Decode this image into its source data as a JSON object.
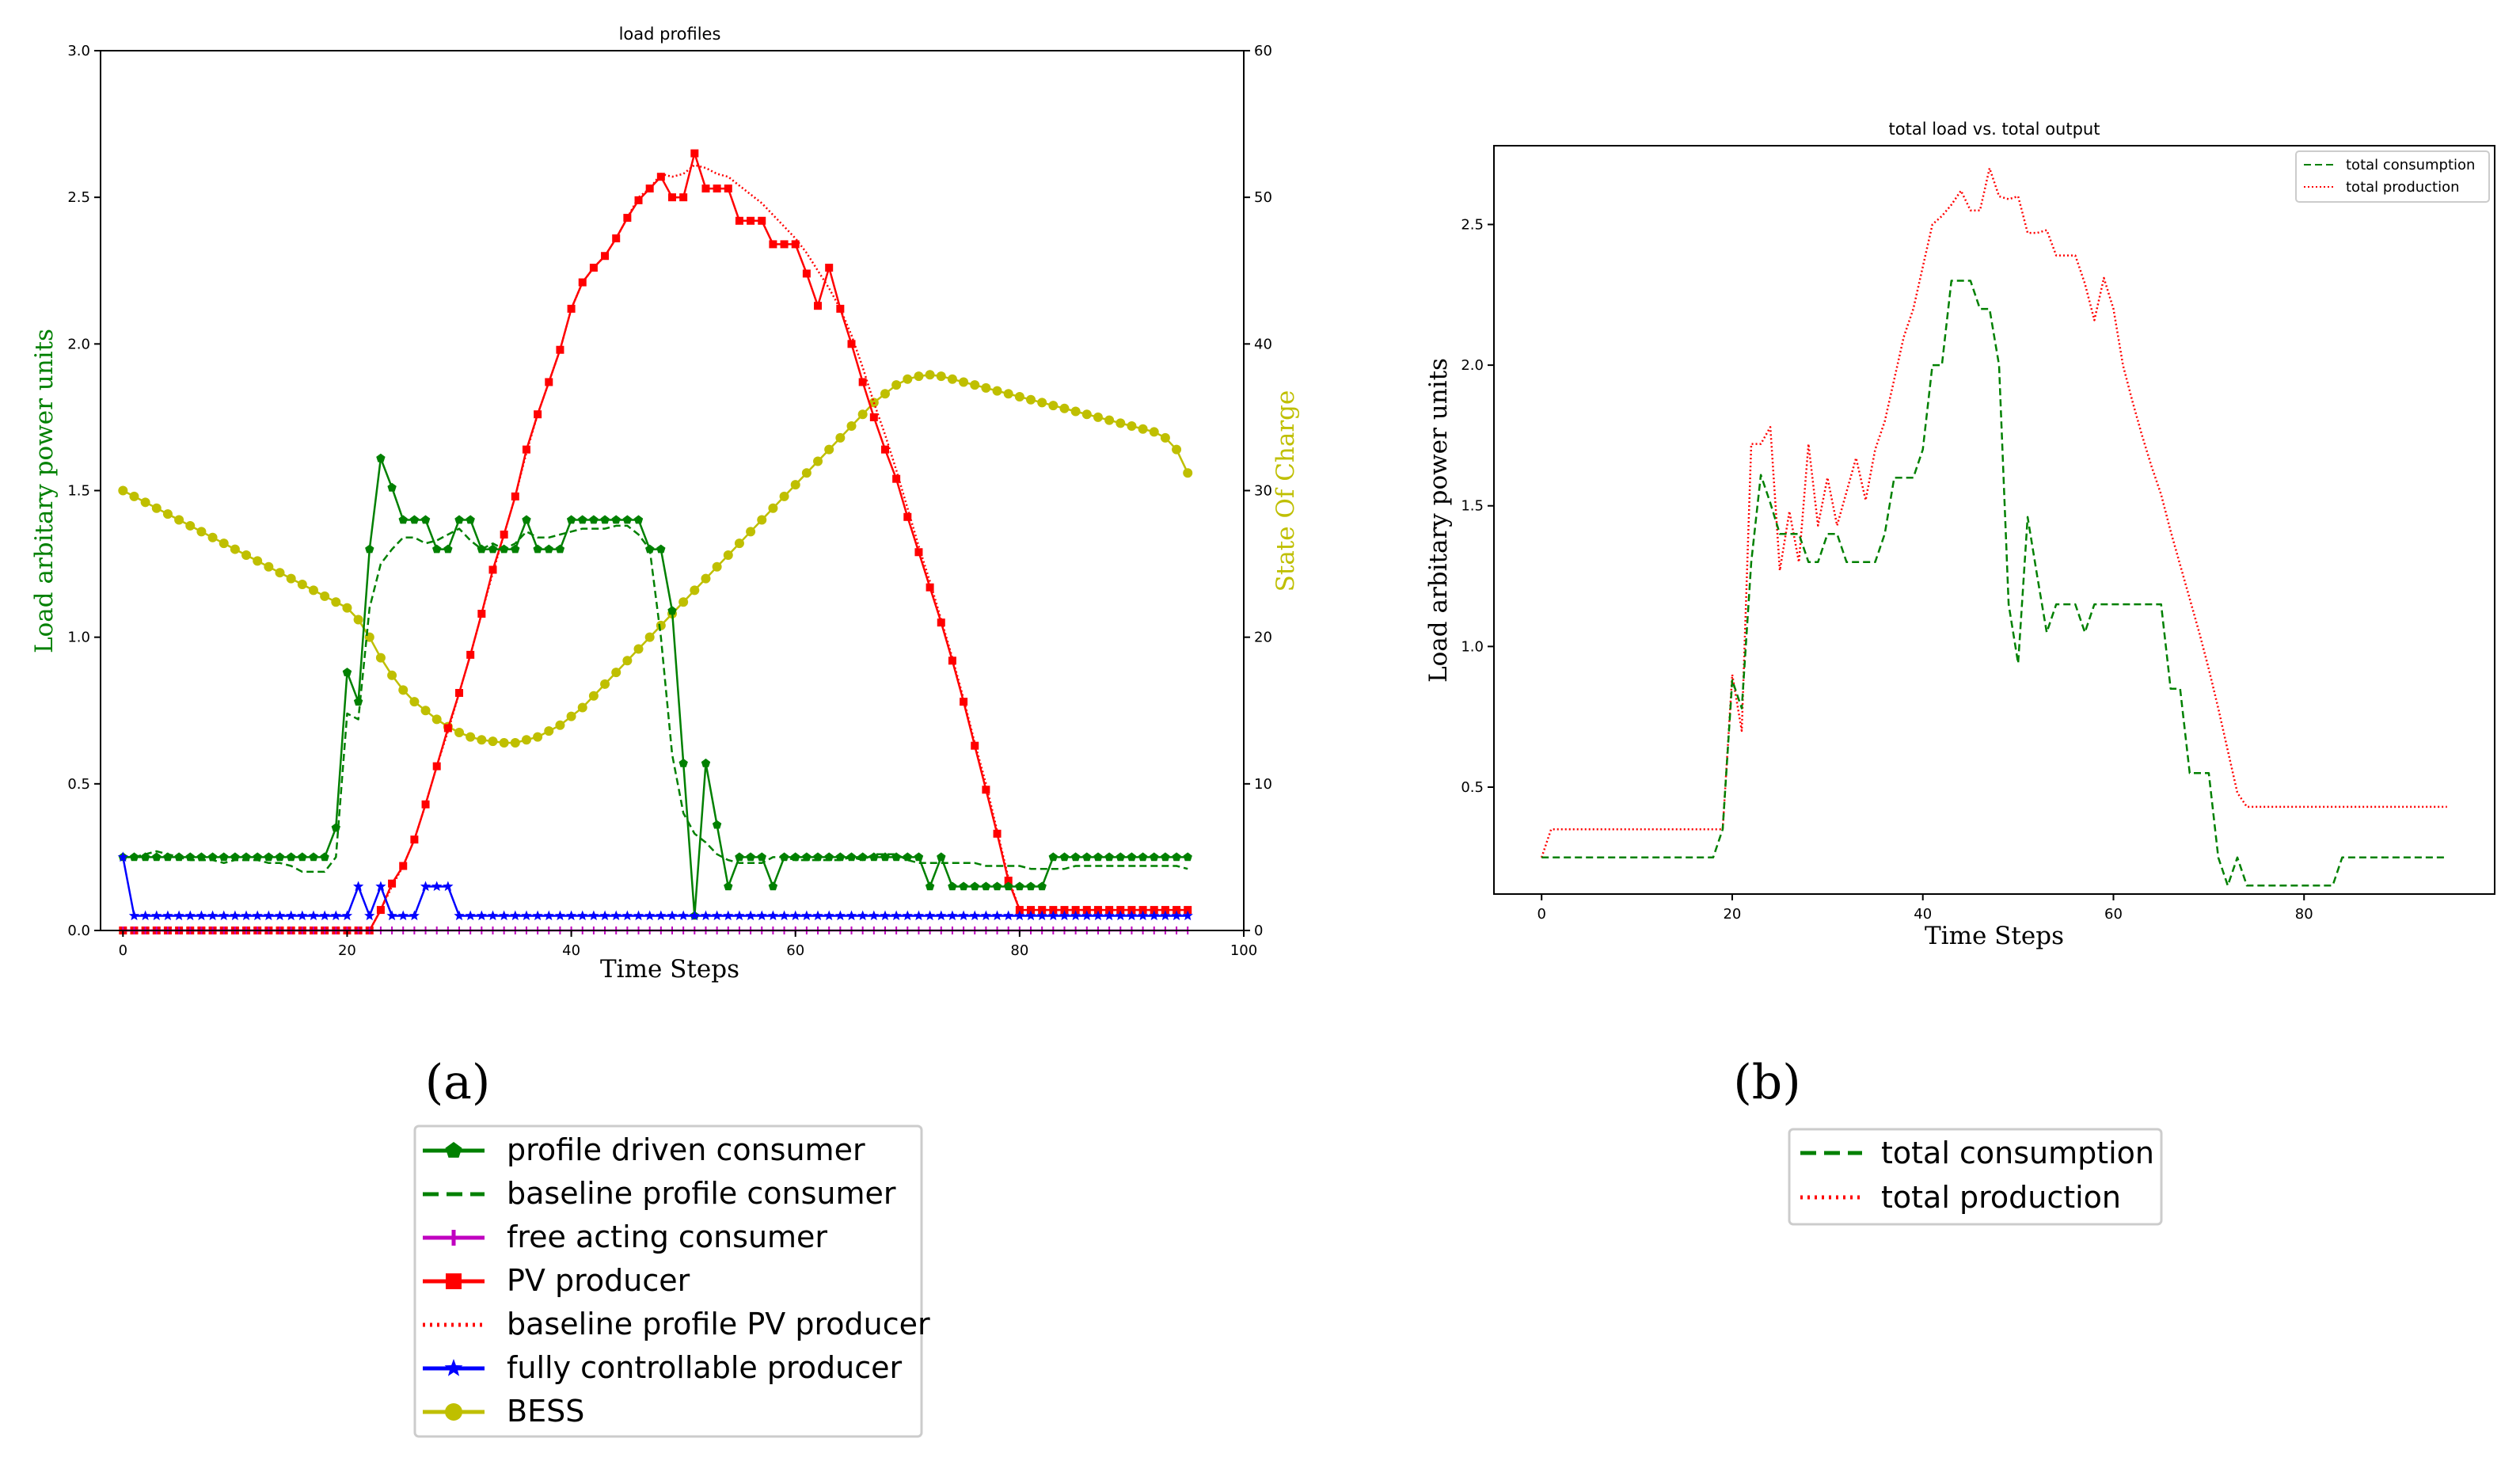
{
  "chart_data": [
    {
      "type": "line",
      "title": "load profiles",
      "xlabel": "Time Steps",
      "ylabel": "Load arbitary power units",
      "y2label": "State Of Charge",
      "xlim": [
        -2,
        100
      ],
      "ylim": [
        0,
        3.0
      ],
      "y2lim": [
        0,
        60
      ],
      "xticks": [
        "0",
        "20",
        "40",
        "60",
        "80",
        "100"
      ],
      "yticks": [
        "0.0",
        "0.5",
        "1.0",
        "1.5",
        "2.0",
        "2.5",
        "3.0"
      ],
      "y2ticks": [
        "0",
        "10",
        "20",
        "30",
        "40",
        "50",
        "60"
      ],
      "subfigure_label": "(a)",
      "legend_placement": "below",
      "series_colors": {
        "profile": "#008000",
        "baseline": "#008000",
        "free": "#c000c0",
        "pv": "#ff0000",
        "pvbase": "#ff0000",
        "fully": "#0000ff",
        "bess": "#bfbf00"
      },
      "series": [
        {
          "key": "profile",
          "name": "profile driven consumer",
          "marker": "pentagon",
          "style": "solid",
          "values": [
            0.25,
            0.25,
            0.25,
            0.25,
            0.25,
            0.25,
            0.25,
            0.25,
            0.25,
            0.25,
            0.25,
            0.25,
            0.25,
            0.25,
            0.25,
            0.25,
            0.25,
            0.25,
            0.25,
            0.35,
            0.88,
            0.78,
            1.3,
            1.61,
            1.51,
            1.4,
            1.4,
            1.4,
            1.3,
            1.3,
            1.4,
            1.4,
            1.3,
            1.3,
            1.3,
            1.3,
            1.4,
            1.3,
            1.3,
            1.3,
            1.4,
            1.4,
            1.4,
            1.4,
            1.4,
            1.4,
            1.4,
            1.3,
            1.3,
            1.09,
            0.57,
            0.05,
            0.57,
            0.36,
            0.15,
            0.25,
            0.25,
            0.25,
            0.15,
            0.25,
            0.25,
            0.25,
            0.25,
            0.25,
            0.25,
            0.25,
            0.25,
            0.25,
            0.25,
            0.25,
            0.25,
            0.25,
            0.15,
            0.25,
            0.15,
            0.15,
            0.15,
            0.15,
            0.15,
            0.15,
            0.15,
            0.15,
            0.15,
            0.25,
            0.25,
            0.25,
            0.25,
            0.25,
            0.25,
            0.25,
            0.25,
            0.25,
            0.25,
            0.25,
            0.25,
            0.25
          ]
        },
        {
          "key": "baseline",
          "name": "baseline profile consumer",
          "marker": "none",
          "style": "dashed",
          "values": [
            0.25,
            0.25,
            0.26,
            0.27,
            0.26,
            0.25,
            0.24,
            0.24,
            0.24,
            0.23,
            0.24,
            0.24,
            0.24,
            0.23,
            0.23,
            0.22,
            0.2,
            0.2,
            0.2,
            0.25,
            0.74,
            0.72,
            1.1,
            1.25,
            1.3,
            1.34,
            1.34,
            1.32,
            1.33,
            1.35,
            1.37,
            1.33,
            1.3,
            1.32,
            1.3,
            1.32,
            1.36,
            1.34,
            1.34,
            1.35,
            1.36,
            1.37,
            1.37,
            1.37,
            1.38,
            1.38,
            1.35,
            1.3,
            1.0,
            0.6,
            0.4,
            0.33,
            0.3,
            0.26,
            0.24,
            0.23,
            0.23,
            0.23,
            0.25,
            0.25,
            0.24,
            0.24,
            0.24,
            0.24,
            0.24,
            0.25,
            0.24,
            0.26,
            0.26,
            0.26,
            0.24,
            0.23,
            0.23,
            0.23,
            0.23,
            0.23,
            0.23,
            0.22,
            0.22,
            0.22,
            0.22,
            0.21,
            0.21,
            0.21,
            0.21,
            0.22,
            0.22,
            0.22,
            0.22,
            0.22,
            0.22,
            0.22,
            0.22,
            0.22,
            0.22,
            0.21
          ]
        },
        {
          "key": "free",
          "name": "free acting consumer",
          "marker": "plus",
          "style": "solid",
          "values": [
            0,
            0,
            0,
            0,
            0,
            0,
            0,
            0,
            0,
            0,
            0,
            0,
            0,
            0,
            0,
            0,
            0,
            0,
            0,
            0,
            0,
            0,
            0,
            0,
            0,
            0,
            0,
            0,
            0,
            0,
            0,
            0,
            0,
            0,
            0,
            0,
            0,
            0,
            0,
            0,
            0,
            0,
            0,
            0,
            0,
            0,
            0,
            0,
            0,
            0,
            0,
            0,
            0,
            0,
            0,
            0,
            0,
            0,
            0,
            0,
            0,
            0,
            0,
            0,
            0,
            0,
            0,
            0,
            0,
            0,
            0,
            0,
            0,
            0,
            0,
            0,
            0,
            0,
            0,
            0,
            0,
            0,
            0,
            0,
            0,
            0,
            0,
            0,
            0,
            0,
            0,
            0,
            0,
            0,
            0,
            0
          ]
        },
        {
          "key": "pv",
          "name": "PV producer",
          "marker": "square",
          "style": "solid",
          "values": [
            0,
            0,
            0,
            0,
            0,
            0,
            0,
            0,
            0,
            0,
            0,
            0,
            0,
            0,
            0,
            0,
            0,
            0,
            0,
            0,
            0,
            0,
            0,
            0.07,
            0.16,
            0.22,
            0.31,
            0.43,
            0.56,
            0.69,
            0.81,
            0.94,
            1.08,
            1.23,
            1.35,
            1.48,
            1.64,
            1.76,
            1.87,
            1.98,
            2.12,
            2.21,
            2.26,
            2.3,
            2.36,
            2.43,
            2.49,
            2.53,
            2.57,
            2.5,
            2.5,
            2.65,
            2.53,
            2.53,
            2.53,
            2.42,
            2.42,
            2.42,
            2.34,
            2.34,
            2.34,
            2.24,
            2.13,
            2.26,
            2.12,
            2.0,
            1.87,
            1.75,
            1.64,
            1.54,
            1.41,
            1.29,
            1.17,
            1.05,
            0.92,
            0.78,
            0.63,
            0.48,
            0.33,
            0.17,
            0.07,
            0.07,
            0.07,
            0.07,
            0.07,
            0.07,
            0.07,
            0.07,
            0.07,
            0.07,
            0.07,
            0.07,
            0.07,
            0.07,
            0.07,
            0.07
          ]
        },
        {
          "key": "pvbase",
          "name": "baseline profile PV producer",
          "marker": "none",
          "style": "dotted",
          "values": [
            0,
            0,
            0,
            0,
            0,
            0,
            0,
            0,
            0,
            0,
            0,
            0,
            0,
            0,
            0,
            0,
            0,
            0,
            0,
            0,
            0,
            0,
            0,
            0.07,
            0.15,
            0.22,
            0.31,
            0.43,
            0.56,
            0.68,
            0.81,
            0.94,
            1.08,
            1.22,
            1.35,
            1.48,
            1.63,
            1.76,
            1.87,
            1.98,
            2.12,
            2.21,
            2.26,
            2.3,
            2.36,
            2.43,
            2.5,
            2.53,
            2.58,
            2.57,
            2.58,
            2.61,
            2.6,
            2.58,
            2.57,
            2.54,
            2.51,
            2.48,
            2.44,
            2.4,
            2.36,
            2.31,
            2.25,
            2.19,
            2.12,
            2.03,
            1.92,
            1.8,
            1.69,
            1.57,
            1.44,
            1.31,
            1.19,
            1.06,
            0.93,
            0.79,
            0.64,
            0.5,
            0.34,
            0.18,
            0.07,
            0.07,
            0.07,
            0.07,
            0.07,
            0.07,
            0.07,
            0.07,
            0.07,
            0.07,
            0.07,
            0.07,
            0.07,
            0.07,
            0.07,
            0.07
          ]
        },
        {
          "key": "fully",
          "name": "fully controllable producer",
          "marker": "star",
          "style": "solid",
          "values": [
            0.25,
            0.05,
            0.05,
            0.05,
            0.05,
            0.05,
            0.05,
            0.05,
            0.05,
            0.05,
            0.05,
            0.05,
            0.05,
            0.05,
            0.05,
            0.05,
            0.05,
            0.05,
            0.05,
            0.05,
            0.05,
            0.15,
            0.05,
            0.15,
            0.05,
            0.05,
            0.05,
            0.15,
            0.15,
            0.15,
            0.05,
            0.05,
            0.05,
            0.05,
            0.05,
            0.05,
            0.05,
            0.05,
            0.05,
            0.05,
            0.05,
            0.05,
            0.05,
            0.05,
            0.05,
            0.05,
            0.05,
            0.05,
            0.05,
            0.05,
            0.05,
            0.05,
            0.05,
            0.05,
            0.05,
            0.05,
            0.05,
            0.05,
            0.05,
            0.05,
            0.05,
            0.05,
            0.05,
            0.05,
            0.05,
            0.05,
            0.05,
            0.05,
            0.05,
            0.05,
            0.05,
            0.05,
            0.05,
            0.05,
            0.05,
            0.05,
            0.05,
            0.05,
            0.05,
            0.05,
            0.05,
            0.05,
            0.05,
            0.05,
            0.05,
            0.05,
            0.05,
            0.05,
            0.05,
            0.05,
            0.05,
            0.05,
            0.05,
            0.05,
            0.05,
            0.05
          ]
        },
        {
          "key": "bess",
          "name": "BESS",
          "marker": "circle",
          "style": "solid",
          "axis": "right",
          "values": [
            30.0,
            29.6,
            29.2,
            28.8,
            28.4,
            28.0,
            27.6,
            27.2,
            26.8,
            26.4,
            26.0,
            25.6,
            25.2,
            24.8,
            24.4,
            24.0,
            23.6,
            23.2,
            22.8,
            22.4,
            22.0,
            21.2,
            20.0,
            18.6,
            17.4,
            16.4,
            15.6,
            15.0,
            14.4,
            13.9,
            13.5,
            13.2,
            13.0,
            12.9,
            12.8,
            12.8,
            13.0,
            13.2,
            13.6,
            14.0,
            14.6,
            15.2,
            16.0,
            16.8,
            17.6,
            18.4,
            19.2,
            20.0,
            20.8,
            21.6,
            22.4,
            23.2,
            24.0,
            24.8,
            25.6,
            26.4,
            27.2,
            28.0,
            28.8,
            29.6,
            30.4,
            31.2,
            32.0,
            32.8,
            33.6,
            34.4,
            35.2,
            36.0,
            36.6,
            37.2,
            37.6,
            37.8,
            37.9,
            37.8,
            37.6,
            37.4,
            37.2,
            37.0,
            36.8,
            36.6,
            36.4,
            36.2,
            36.0,
            35.8,
            35.6,
            35.4,
            35.2,
            35.0,
            34.8,
            34.6,
            34.4,
            34.2,
            34.0,
            33.6,
            32.8,
            31.2
          ]
        }
      ]
    },
    {
      "type": "line",
      "title": "total load vs. total output",
      "xlabel": "Time Steps",
      "ylabel": "Load arbitary power units",
      "xlim": [
        -5,
        100
      ],
      "ylim": [
        0.12,
        2.78
      ],
      "xticks": [
        "0",
        "20",
        "40",
        "60",
        "80"
      ],
      "yticks": [
        "0.5",
        "1.0",
        "1.5",
        "2.0",
        "2.5"
      ],
      "subfigure_label": "(b)",
      "legend_placement": "top-right",
      "series_colors": {
        "cons": "#008000",
        "prod": "#ff0000"
      },
      "series": [
        {
          "key": "cons",
          "name": "total consumption",
          "style": "dashed",
          "values": [
            0.25,
            0.25,
            0.25,
            0.25,
            0.25,
            0.25,
            0.25,
            0.25,
            0.25,
            0.25,
            0.25,
            0.25,
            0.25,
            0.25,
            0.25,
            0.25,
            0.25,
            0.25,
            0.25,
            0.35,
            0.88,
            0.78,
            1.3,
            1.61,
            1.51,
            1.4,
            1.4,
            1.4,
            1.3,
            1.3,
            1.4,
            1.4,
            1.3,
            1.3,
            1.3,
            1.3,
            1.4,
            1.6,
            1.6,
            1.6,
            1.7,
            2.0,
            2.0,
            2.3,
            2.3,
            2.3,
            2.2,
            2.2,
            2.0,
            1.15,
            0.94,
            1.46,
            1.25,
            1.05,
            1.15,
            1.15,
            1.15,
            1.05,
            1.15,
            1.15,
            1.15,
            1.15,
            1.15,
            1.15,
            1.15,
            1.15,
            0.85,
            0.85,
            0.55,
            0.55,
            0.55,
            0.25,
            0.15,
            0.25,
            0.15,
            0.15,
            0.15,
            0.15,
            0.15,
            0.15,
            0.15,
            0.15,
            0.15,
            0.15,
            0.25,
            0.25,
            0.25,
            0.25,
            0.25,
            0.25,
            0.25,
            0.25,
            0.25,
            0.25,
            0.25,
            0.25
          ]
        },
        {
          "key": "prod",
          "name": "total production",
          "style": "dotted",
          "values": [
            0.25,
            0.35,
            0.35,
            0.35,
            0.35,
            0.35,
            0.35,
            0.35,
            0.35,
            0.35,
            0.35,
            0.35,
            0.35,
            0.35,
            0.35,
            0.35,
            0.35,
            0.35,
            0.35,
            0.35,
            0.9,
            0.7,
            1.72,
            1.72,
            1.78,
            1.27,
            1.48,
            1.3,
            1.72,
            1.43,
            1.6,
            1.43,
            1.55,
            1.67,
            1.52,
            1.7,
            1.8,
            1.95,
            2.1,
            2.2,
            2.35,
            2.5,
            2.53,
            2.57,
            2.62,
            2.55,
            2.55,
            2.7,
            2.6,
            2.59,
            2.6,
            2.47,
            2.47,
            2.48,
            2.39,
            2.39,
            2.39,
            2.29,
            2.16,
            2.31,
            2.2,
            2.0,
            1.87,
            1.75,
            1.64,
            1.54,
            1.41,
            1.29,
            1.17,
            1.05,
            0.92,
            0.78,
            0.63,
            0.48,
            0.43,
            0.43,
            0.43,
            0.43,
            0.43,
            0.43,
            0.43,
            0.43,
            0.43,
            0.43,
            0.43,
            0.43,
            0.43,
            0.43,
            0.43,
            0.43,
            0.43,
            0.43,
            0.43,
            0.43,
            0.43,
            0.43
          ]
        }
      ]
    }
  ]
}
